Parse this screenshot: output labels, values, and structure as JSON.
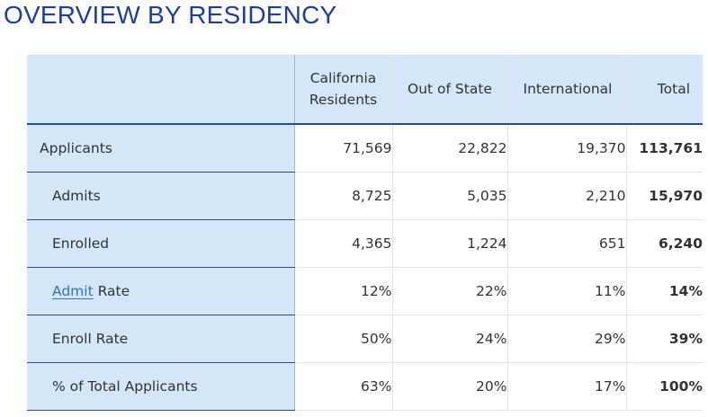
{
  "page": {
    "title": "OVERVIEW BY RESIDENCY"
  },
  "table": {
    "headers": {
      "california_line1": "California",
      "california_line2": "Residents",
      "out_of_state": "Out of State",
      "international": "International",
      "total": "Total"
    },
    "rows": [
      {
        "label": "Applicants",
        "california": "71,569",
        "out_of_state": "22,822",
        "international": "19,370",
        "total": "113,761"
      },
      {
        "label": "Admits",
        "california": "8,725",
        "out_of_state": "5,035",
        "international": "2,210",
        "total": "15,970"
      },
      {
        "label": "Enrolled",
        "california": "4,365",
        "out_of_state": "1,224",
        "international": "651",
        "total": "6,240"
      },
      {
        "label_link": "Admit",
        "label_rest": " Rate",
        "california": "12%",
        "out_of_state": "22%",
        "international": "11%",
        "total": "14%"
      },
      {
        "label": "Enroll Rate",
        "california": "50%",
        "out_of_state": "24%",
        "international": "29%",
        "total": "39%"
      },
      {
        "label": "% of Total Applicants",
        "california": "63%",
        "out_of_state": "20%",
        "international": "17%",
        "total": "100%"
      }
    ]
  },
  "colors": {
    "title": "#1f3e9a",
    "header_bg": "#d3e7f8",
    "row_divider": "#274f85",
    "link": "#2f6fd6"
  }
}
